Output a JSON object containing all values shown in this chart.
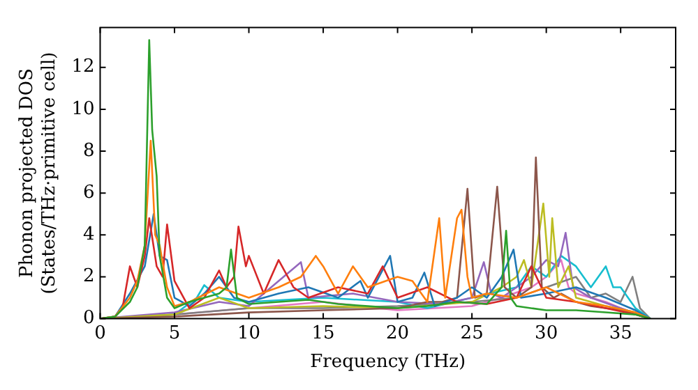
{
  "chart_data": {
    "type": "line",
    "xlabel": "Frequency (THz)",
    "ylabel": "Phonon projected DOS\n(States/THz·primitive cell)",
    "xlim": [
      0,
      38.7
    ],
    "xticks": [
      0,
      5,
      10,
      15,
      20,
      25,
      30,
      35
    ],
    "ylim": [
      0,
      13.9
    ],
    "yticks": [
      0,
      2,
      4,
      6,
      8,
      10,
      12
    ],
    "grid": false,
    "legend": false,
    "marker": "none",
    "line_style": "solid",
    "series": [
      {
        "color": "#2ca02c",
        "x": [
          0,
          1,
          2,
          2.5,
          3,
          3.3,
          3.5,
          3.8,
          4,
          4.5,
          5,
          6,
          7,
          8,
          8.5,
          8.8,
          9.2,
          10,
          12,
          14,
          16,
          18,
          20,
          22,
          24,
          26,
          27,
          27.3,
          27.6,
          28,
          30,
          32,
          34,
          36,
          37
        ],
        "values": [
          0,
          0.1,
          0.8,
          1.5,
          3.5,
          13.3,
          9,
          6.8,
          3,
          1,
          0.5,
          0.8,
          1.0,
          1.2,
          1.5,
          3.3,
          1.0,
          0.7,
          0.8,
          0.9,
          0.7,
          0.6,
          0.5,
          0.6,
          0.8,
          0.7,
          1.5,
          4.2,
          1.0,
          0.6,
          0.4,
          0.4,
          0.3,
          0.2,
          0
        ]
      },
      {
        "color": "#ff7f0e",
        "x": [
          0,
          1,
          2,
          2.5,
          3,
          3.4,
          3.7,
          4,
          4.5,
          5,
          6,
          8,
          10,
          12,
          13.5,
          14.5,
          15,
          16,
          17,
          18,
          20,
          21,
          22,
          22.8,
          23.2,
          24,
          24.3,
          24.7,
          25,
          26,
          28,
          30,
          32,
          34,
          36,
          37
        ],
        "values": [
          0,
          0.1,
          1.0,
          1.8,
          3.5,
          8.5,
          4,
          3.5,
          1.5,
          0.6,
          0.8,
          1.5,
          1.0,
          1.5,
          2.0,
          3.0,
          2.5,
          1.2,
          2.5,
          1.5,
          2.0,
          1.8,
          0.8,
          4.8,
          1.0,
          4.8,
          5.2,
          2.0,
          1.0,
          1.2,
          1.0,
          1.5,
          0.8,
          0.6,
          0.3,
          0
        ]
      },
      {
        "color": "#d62728",
        "x": [
          0,
          1,
          1.5,
          2,
          2.5,
          3,
          3.3,
          3.8,
          4.2,
          4.5,
          5,
          6,
          7,
          8,
          8.5,
          9,
          9.3,
          9.8,
          10,
          11,
          12,
          13,
          14,
          16,
          18,
          19,
          20,
          22,
          24,
          26,
          28,
          29,
          30,
          32,
          34,
          36,
          37
        ],
        "values": [
          0,
          0.1,
          0.5,
          2.5,
          1.5,
          3.0,
          4.8,
          2.5,
          2.0,
          4.5,
          1.8,
          0.5,
          1.0,
          2.3,
          1.5,
          2.0,
          4.4,
          2.5,
          3.0,
          1.2,
          2.8,
          1.5,
          1.0,
          1.5,
          1.2,
          2.5,
          1.0,
          1.5,
          0.8,
          0.7,
          1.0,
          2.5,
          1.0,
          0.8,
          0.5,
          0.2,
          0
        ]
      },
      {
        "color": "#1f77b4",
        "x": [
          0,
          1,
          2,
          3,
          3.6,
          4,
          4.5,
          5,
          6,
          7,
          8,
          9,
          10,
          12,
          14,
          16,
          17.5,
          18,
          19.5,
          20,
          21,
          21.8,
          22.5,
          24,
          25,
          26,
          27,
          27.8,
          28.3,
          30,
          32,
          34,
          36,
          37
        ],
        "values": [
          0,
          0.1,
          1.2,
          2.5,
          5.0,
          3.0,
          2.8,
          1.0,
          0.6,
          1.2,
          2.0,
          1.0,
          0.8,
          1.2,
          1.5,
          1.0,
          1.8,
          1.0,
          3.0,
          0.8,
          1.0,
          2.2,
          0.6,
          1.0,
          1.5,
          1.0,
          2.0,
          3.3,
          1.0,
          1.2,
          1.5,
          1.0,
          0.4,
          0
        ]
      },
      {
        "color": "#8c564b",
        "x": [
          0,
          5,
          10,
          15,
          20,
          22,
          23,
          24,
          24.7,
          25.2,
          26,
          26.7,
          27.2,
          28,
          29,
          29.3,
          29.7,
          30.5,
          31,
          32,
          33,
          34,
          35,
          36,
          37
        ],
        "values": [
          0,
          0.1,
          0.3,
          0.4,
          0.5,
          0.8,
          0.8,
          1.0,
          6.2,
          1.0,
          1.2,
          6.3,
          1.5,
          1.0,
          1.5,
          7.7,
          1.5,
          1.0,
          1.2,
          0.8,
          0.6,
          0.5,
          0.4,
          0.2,
          0
        ]
      },
      {
        "color": "#bcbd22",
        "x": [
          0,
          5,
          8,
          10,
          15,
          20,
          25,
          27,
          28,
          28.5,
          29,
          29.8,
          30.2,
          30.4,
          30.8,
          31.5,
          32,
          34,
          36,
          37
        ],
        "values": [
          0,
          0.2,
          1.0,
          0.5,
          0.6,
          0.5,
          0.8,
          1.5,
          2.0,
          2.8,
          1.5,
          5.5,
          2.0,
          4.8,
          1.5,
          2.5,
          1.0,
          0.6,
          0.3,
          0
        ]
      },
      {
        "color": "#9467bd",
        "x": [
          0,
          5,
          8,
          10,
          13.5,
          14,
          17,
          20,
          23,
          25,
          25.8,
          26.3,
          27,
          28,
          29,
          30,
          30.8,
          31.3,
          31.8,
          33,
          35,
          37
        ],
        "values": [
          0,
          0.3,
          0.8,
          0.6,
          2.7,
          1.0,
          1.2,
          0.8,
          0.7,
          1.0,
          2.7,
          1.2,
          1.0,
          1.5,
          2.0,
          2.8,
          2.5,
          4.1,
          1.5,
          1.0,
          0.5,
          0
        ]
      },
      {
        "color": "#17becf",
        "x": [
          0,
          5,
          6.5,
          7,
          8,
          10,
          15,
          20,
          22,
          25,
          28,
          29,
          30,
          31,
          32,
          33,
          34,
          34.5,
          35,
          36,
          37
        ],
        "values": [
          0,
          0.2,
          1.0,
          1.6,
          1.0,
          0.8,
          1.0,
          0.8,
          0.5,
          1.0,
          1.5,
          2.5,
          2.0,
          3.0,
          2.5,
          1.5,
          2.5,
          1.5,
          1.5,
          0.5,
          0
        ]
      },
      {
        "color": "#7f7f7f",
        "x": [
          0,
          5,
          10,
          15,
          20,
          25,
          28,
          30,
          32,
          32.5,
          33,
          34,
          35,
          35.8,
          36.3,
          37
        ],
        "values": [
          0,
          0.2,
          0.5,
          0.5,
          0.6,
          0.8,
          1.0,
          1.5,
          2.0,
          1.5,
          1.0,
          1.2,
          0.8,
          2.0,
          0.5,
          0
        ]
      },
      {
        "color": "#e377c2",
        "x": [
          0,
          5,
          10,
          15,
          20,
          25,
          27,
          29,
          30,
          31,
          31.5,
          32,
          34,
          35,
          37
        ],
        "values": [
          0,
          0.2,
          0.5,
          0.8,
          0.4,
          0.6,
          1.0,
          1.5,
          2.0,
          2.8,
          1.5,
          1.2,
          0.8,
          0.5,
          0
        ]
      }
    ]
  }
}
